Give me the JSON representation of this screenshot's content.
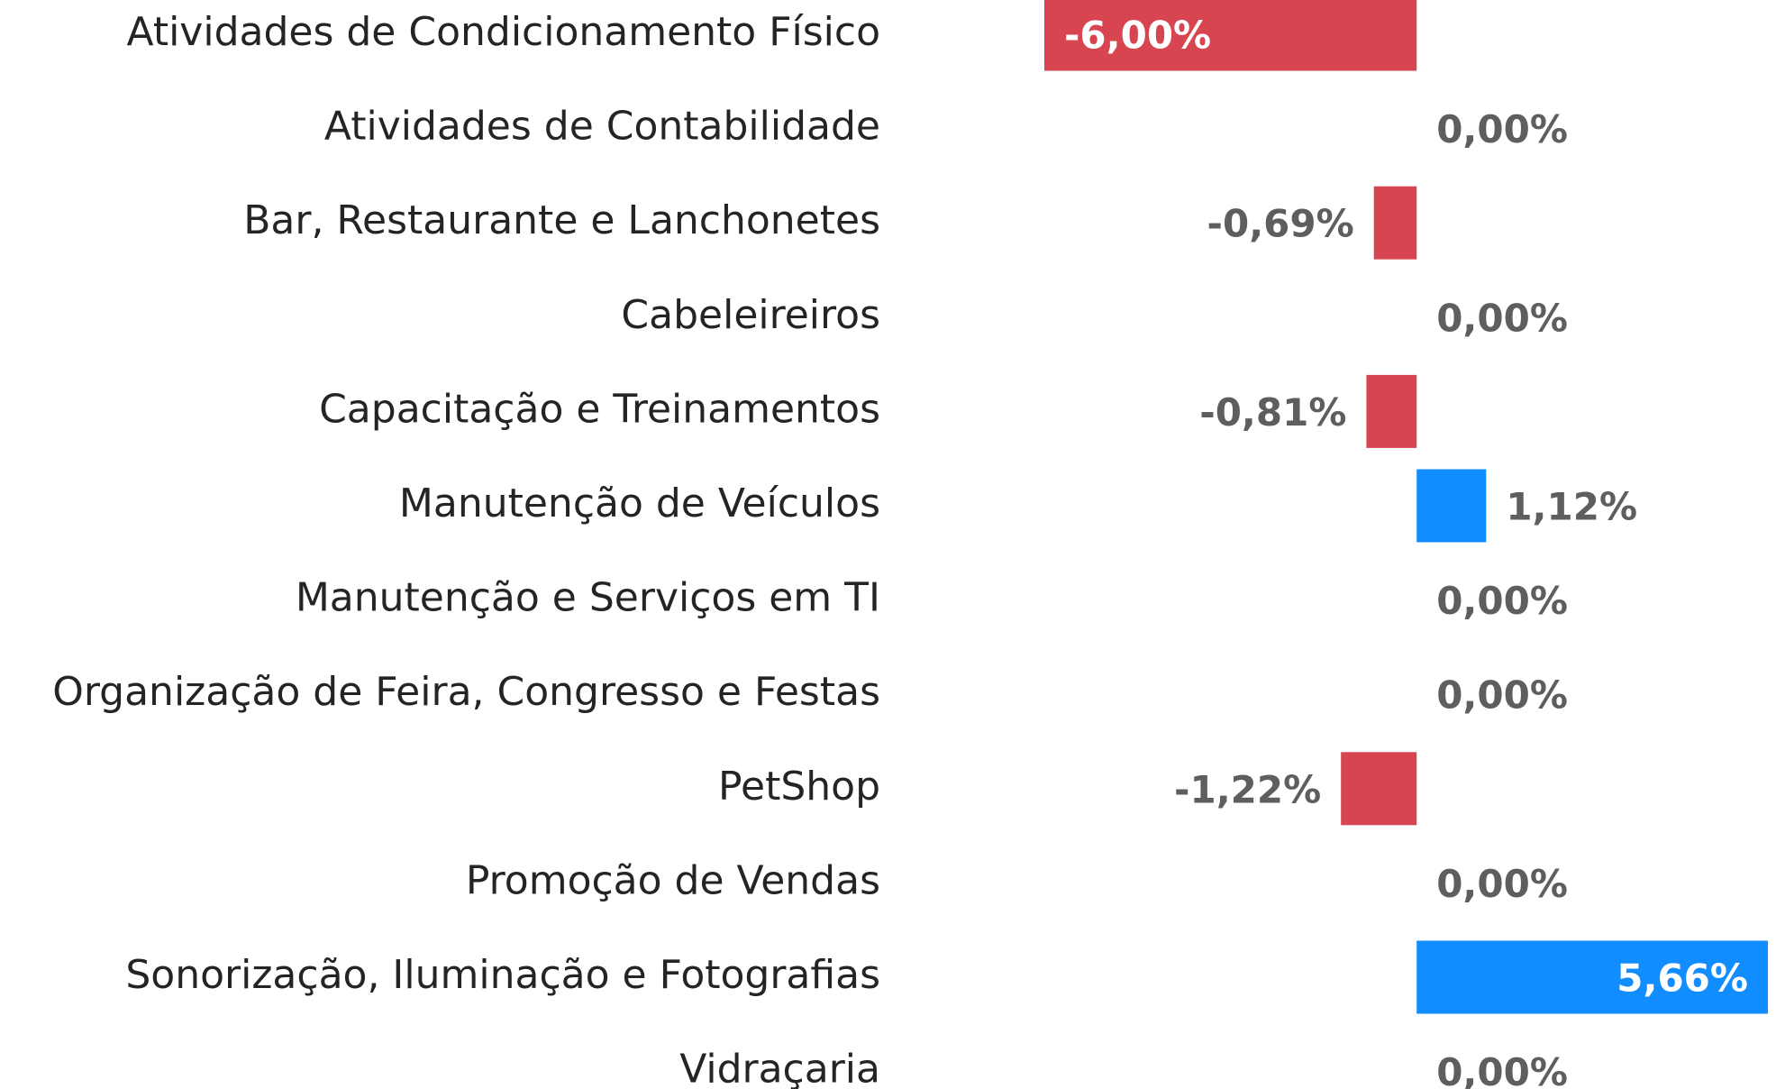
{
  "chart_data": {
    "type": "bar",
    "orientation": "horizontal",
    "categories": [
      "Atividades de Condicionamento Físico",
      "Atividades de Contabilidade",
      "Bar, Restaurante e Lanchonetes",
      "Cabeleireiros",
      "Capacitação e Treinamentos",
      "Manutenção de Veículos",
      "Manutenção e Serviços em TI",
      "Organização de Feira, Congresso e Festas",
      "PetShop",
      "Promoção de Vendas",
      "Sonorização, Iluminação e Fotografias",
      "Vidraçaria"
    ],
    "values": [
      -6.0,
      0.0,
      -0.69,
      0.0,
      -0.81,
      1.12,
      0.0,
      0.0,
      -1.22,
      0.0,
      5.66,
      0.0
    ],
    "value_labels": [
      "-6,00%",
      "0,00%",
      "-0,69%",
      "0,00%",
      "-0,81%",
      "1,12%",
      "0,00%",
      "0,00%",
      "-1,22%",
      "0,00%",
      "5,66%",
      "0,00%"
    ],
    "negative_color": "#d64550",
    "positive_color": "#118dff"
  }
}
